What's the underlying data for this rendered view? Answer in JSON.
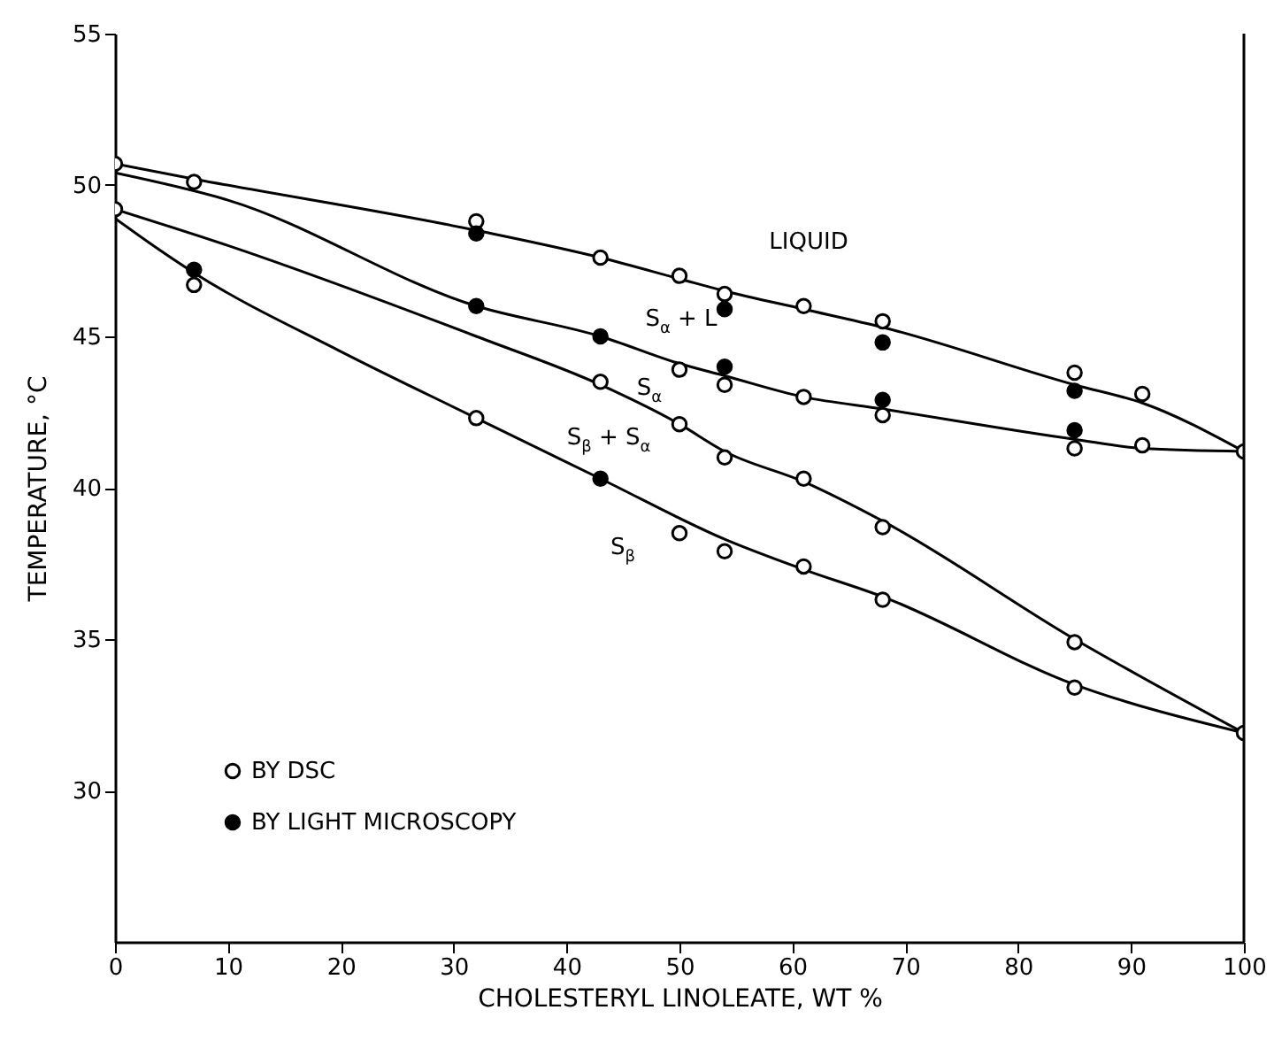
{
  "chart_data": {
    "type": "scatter",
    "xlabel": "CHOLESTERYL LINOLEATE, WT %",
    "ylabel": "TEMPERATURE, °C",
    "xlim": [
      0,
      100
    ],
    "xticks": [
      0,
      10,
      20,
      30,
      40,
      50,
      60,
      70,
      80,
      90,
      100
    ],
    "ylim": [
      25,
      55
    ],
    "yticks": [
      30,
      35,
      40,
      45,
      50,
      55
    ],
    "grid": false,
    "legend": "bottom left",
    "marker": "circle",
    "series": [
      {
        "name": "BY DSC",
        "color": "#ffffff",
        "x": [
          0,
          0,
          7,
          7,
          32,
          32,
          43,
          43,
          50,
          50,
          50,
          50,
          54,
          54,
          54,
          54,
          61,
          61,
          61,
          61,
          68,
          68,
          68,
          68,
          85,
          85,
          85,
          85,
          91,
          91,
          100,
          100
        ],
        "values": [
          50.7,
          49.2,
          50.1,
          46.7,
          48.8,
          42.3,
          47.6,
          43.5,
          47.0,
          43.9,
          42.1,
          38.5,
          46.4,
          43.4,
          41.0,
          37.9,
          46.0,
          43.0,
          40.3,
          37.4,
          45.5,
          42.4,
          38.7,
          36.3,
          43.8,
          41.3,
          34.9,
          33.4,
          43.1,
          41.4,
          41.2,
          31.9
        ]
      },
      {
        "name": "BY LIGHT MICROSCOPY",
        "color": "#000000",
        "x": [
          7,
          32,
          32,
          43,
          43,
          54,
          54,
          68,
          68,
          85,
          85
        ],
        "values": [
          47.2,
          48.4,
          46.0,
          45.0,
          40.3,
          45.9,
          44.0,
          44.8,
          42.9,
          43.2,
          41.9
        ]
      },
      {
        "type": "line",
        "color": "#000000",
        "marker": "none",
        "x": [
          0,
          7,
          32,
          43,
          50,
          54,
          61,
          68,
          85,
          91,
          100
        ],
        "values": [
          50.7,
          50.2,
          48.5,
          47.6,
          46.9,
          46.5,
          45.9,
          45.3,
          43.4,
          42.8,
          41.2
        ]
      },
      {
        "type": "line",
        "color": "#000000",
        "marker": "none",
        "x": [
          0,
          10,
          32,
          43,
          50,
          54,
          61,
          68,
          85,
          91,
          100
        ],
        "values": [
          50.4,
          49.5,
          46.0,
          45.0,
          44.1,
          43.7,
          43.0,
          42.6,
          41.6,
          41.3,
          41.2
        ]
      },
      {
        "type": "line",
        "color": "#000000",
        "marker": "none",
        "x": [
          0,
          10,
          32,
          43,
          50,
          54,
          61,
          68,
          85,
          100
        ],
        "values": [
          49.2,
          48.0,
          45.0,
          43.4,
          42.1,
          41.2,
          40.2,
          38.9,
          35.0,
          31.9
        ]
      },
      {
        "type": "line",
        "color": "#000000",
        "marker": "none",
        "x": [
          0,
          3,
          7,
          20,
          32,
          43,
          54,
          61,
          68,
          85,
          100
        ],
        "values": [
          48.9,
          48.1,
          47.1,
          44.5,
          42.3,
          40.3,
          38.3,
          37.3,
          36.4,
          33.5,
          31.9
        ]
      }
    ],
    "annotations": [
      "LIQUID",
      "S$_{α}$ + L",
      "S$_{α}$",
      "S$_{β}$ + S$_{α}$",
      "S$_{β}$"
    ]
  }
}
